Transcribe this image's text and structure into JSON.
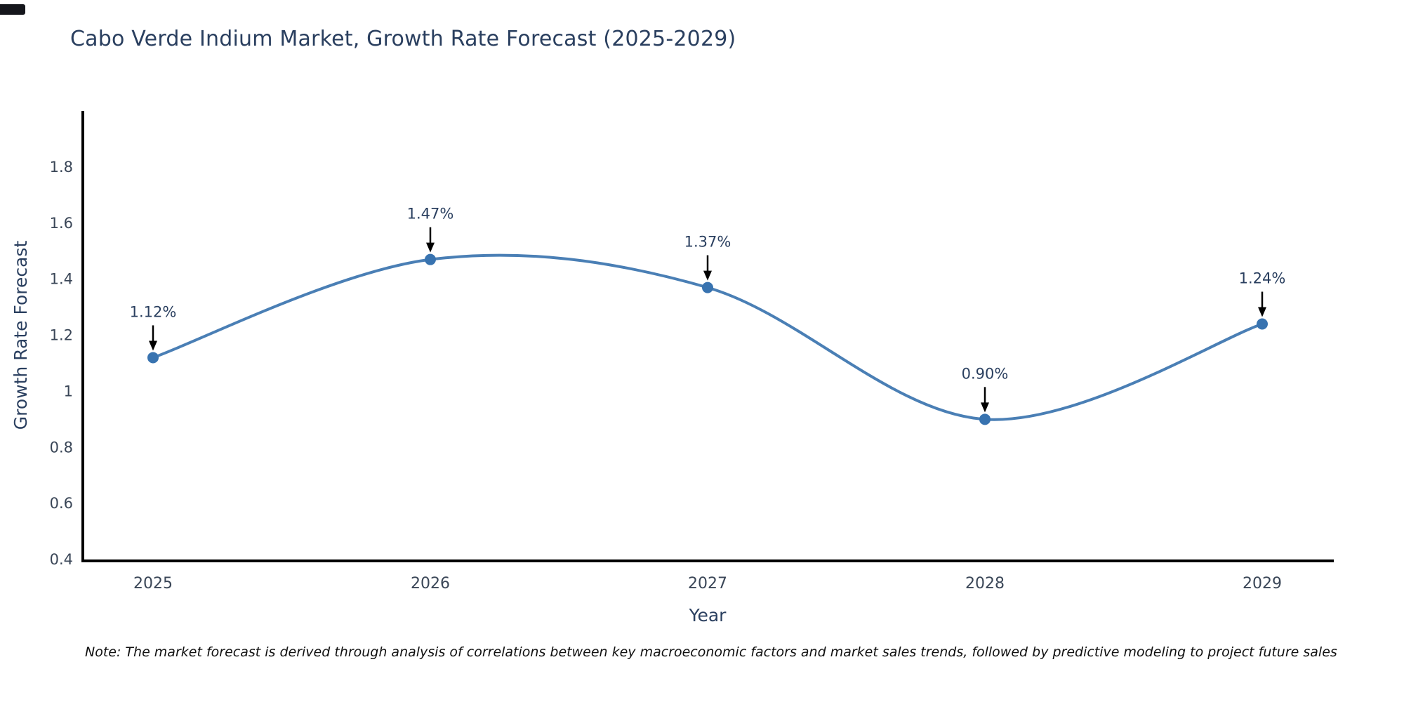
{
  "chart_data": {
    "type": "line",
    "title": "Cabo Verde Indium Market, Growth Rate Forecast (2025-2029)",
    "xlabel": "Year",
    "ylabel": "Growth Rate Forecast",
    "x": [
      2025,
      2026,
      2027,
      2028,
      2029
    ],
    "x_labels": [
      "2025",
      "2026",
      "2027",
      "2028",
      "2029"
    ],
    "series": [
      {
        "name": "Growth Rate Forecast",
        "values": [
          1.12,
          1.47,
          1.37,
          0.9,
          1.24
        ]
      }
    ],
    "point_labels": [
      "1.12%",
      "1.47%",
      "1.37%",
      "0.90%",
      "1.24%"
    ],
    "line_shape": "spline",
    "grid": false,
    "legend_position": "none",
    "ylim": [
      0.4,
      2.0
    ],
    "ytick_values": [
      0.4,
      0.6,
      0.8,
      1.0,
      1.2,
      1.4,
      1.6,
      1.8
    ],
    "ytick_labels": [
      "0.4",
      "0.6",
      "0.8",
      "1",
      "1.2",
      "1.4",
      "1.6",
      "1.8"
    ],
    "colors": {
      "line": "#4a7fb5",
      "marker": "#3873b0",
      "axis": "#000000",
      "text": "#2a3f5f",
      "tick_text": "#3a4657",
      "annotation_arrow": "#000000",
      "background": "#ffffff"
    }
  },
  "note": "Note: The market forecast is derived through analysis of correlations between key macroeconomic factors and market sales trends, followed by predictive modeling to project future sales"
}
